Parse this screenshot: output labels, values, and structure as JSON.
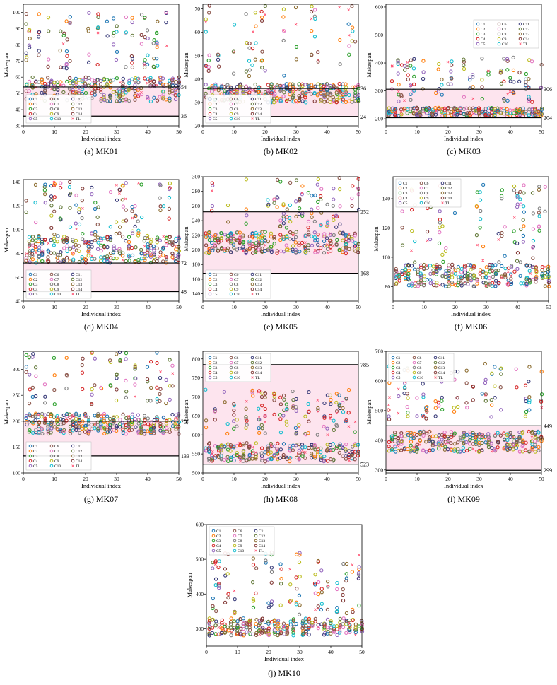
{
  "xlabel": "Individual index",
  "ylabel": "Makespan",
  "legend_labels": [
    "C1",
    "C2",
    "C3",
    "C4",
    "C5",
    "C6",
    "C7",
    "C8",
    "C9",
    "C10",
    "C11",
    "C12",
    "C13",
    "C14",
    "TL"
  ],
  "chart_data": [
    {
      "type": "scatter",
      "caption": "(a) MK01",
      "xlim": [
        0,
        50
      ],
      "ylim": [
        30,
        105
      ],
      "xticks": [
        0,
        10,
        20,
        30,
        40,
        50
      ],
      "yticks": [
        30,
        40,
        50,
        60,
        70,
        80,
        90,
        100
      ],
      "upper_line": 54,
      "lower_line": 36,
      "upper_label": "54",
      "lower_label": "36",
      "has_band": true,
      "legend": "bottom-left",
      "cluster_low": [
        45,
        60
      ],
      "cluster_high": [
        65,
        100
      ]
    },
    {
      "type": "scatter",
      "caption": "(b) MK02",
      "xlim": [
        0,
        50
      ],
      "ylim": [
        20,
        72
      ],
      "xticks": [
        0,
        10,
        20,
        30,
        40,
        50
      ],
      "yticks": [
        20,
        30,
        40,
        50,
        60,
        70
      ],
      "upper_line": 36,
      "lower_line": 24,
      "upper_label": "36",
      "lower_label": "24",
      "has_band": true,
      "legend": "bottom-left",
      "cluster_low": [
        30,
        38
      ],
      "cluster_high": [
        40,
        72
      ]
    },
    {
      "type": "scatter",
      "caption": "(c) MK03",
      "xlim": [
        0,
        50
      ],
      "ylim": [
        175,
        610
      ],
      "xticks": [
        0,
        10,
        20,
        30,
        40,
        50
      ],
      "yticks": [
        200,
        300,
        400,
        500,
        600
      ],
      "upper_line": 306,
      "lower_line": 204,
      "upper_label": "306",
      "lower_label": "204",
      "has_band": true,
      "legend": "top-right",
      "cluster_low": [
        210,
        240
      ],
      "cluster_high": [
        260,
        420
      ]
    },
    {
      "type": "scatter",
      "caption": "(d) MK04",
      "xlim": [
        0,
        50
      ],
      "ylim": [
        40,
        142
      ],
      "xticks": [
        0,
        10,
        20,
        30,
        40,
        50
      ],
      "yticks": [
        40,
        60,
        80,
        100,
        120,
        140
      ],
      "upper_line": 72,
      "lower_line": 48,
      "upper_label": "72",
      "lower_label": "48",
      "has_band": true,
      "legend": "bottom-left",
      "cluster_low": [
        72,
        95
      ],
      "cluster_high": [
        95,
        140
      ]
    },
    {
      "type": "scatter",
      "caption": "(e) MK05",
      "xlim": [
        0,
        50
      ],
      "ylim": [
        130,
        300
      ],
      "xticks": [
        0,
        10,
        20,
        30,
        40,
        50
      ],
      "yticks": [
        140,
        160,
        180,
        200,
        220,
        240,
        260,
        280,
        300
      ],
      "upper_line": 252,
      "lower_line": 168,
      "upper_label": "252",
      "lower_label": "168",
      "has_band": true,
      "legend": "bottom-left",
      "cluster_low": [
        195,
        225
      ],
      "cluster_high": [
        230,
        300
      ]
    },
    {
      "type": "scatter",
      "caption": "(f) MK06",
      "xlim": [
        0,
        50
      ],
      "ylim": [
        70,
        155
      ],
      "xticks": [
        0,
        10,
        20,
        30,
        40,
        50
      ],
      "yticks": [
        80,
        100,
        120,
        140
      ],
      "upper_line": null,
      "lower_line": null,
      "upper_label": "",
      "lower_label": "",
      "has_band": false,
      "legend": "top-left",
      "cluster_low": [
        80,
        95
      ],
      "cluster_high": [
        95,
        150
      ]
    },
    {
      "type": "scatter",
      "caption": "(g) MK07",
      "xlim": [
        0,
        50
      ],
      "ylim": [
        100,
        335
      ],
      "xticks": [
        0,
        10,
        20,
        30,
        40,
        50
      ],
      "yticks": [
        100,
        150,
        200,
        250,
        300
      ],
      "upper_line": 200,
      "lower_line": 133,
      "upper_label": "200",
      "lower_label": "133",
      "has_band": true,
      "legend": "bottom-left",
      "cluster_low": [
        175,
        215
      ],
      "cluster_high": [
        230,
        335
      ]
    },
    {
      "type": "scatter",
      "caption": "(h) MK08",
      "xlim": [
        0,
        50
      ],
      "ylim": [
        500,
        820
      ],
      "xticks": [
        0,
        10,
        20,
        30,
        40,
        50
      ],
      "yticks": [
        500,
        550,
        600,
        650,
        700,
        750,
        800
      ],
      "upper_line": 785,
      "lower_line": 523,
      "upper_label": "785",
      "lower_label": "523",
      "has_band": true,
      "legend": "top-left",
      "cluster_low": [
        530,
        580
      ],
      "cluster_high": [
        600,
        720
      ]
    },
    {
      "type": "scatter",
      "caption": "(i) MK09",
      "xlim": [
        0,
        50
      ],
      "ylim": [
        290,
        700
      ],
      "xticks": [
        0,
        10,
        20,
        30,
        40,
        50
      ],
      "yticks": [
        300,
        400,
        500,
        600,
        700
      ],
      "upper_line": 449,
      "lower_line": 299,
      "upper_label": "449",
      "lower_label": "299",
      "has_band": true,
      "legend": "top-left",
      "cluster_low": [
        360,
        430
      ],
      "cluster_high": [
        470,
        660
      ]
    },
    {
      "type": "scatter",
      "caption": "(j) MK10",
      "xlim": [
        0,
        50
      ],
      "ylim": [
        250,
        600
      ],
      "xticks": [
        0,
        10,
        20,
        30,
        40,
        50
      ],
      "yticks": [
        300,
        400,
        500,
        600
      ],
      "upper_line": null,
      "lower_line": null,
      "upper_label": "",
      "lower_label": "",
      "has_band": false,
      "legend": "top-left",
      "cluster_low": [
        280,
        330
      ],
      "cluster_high": [
        340,
        520
      ]
    }
  ],
  "series_colors": [
    "#1f77b4",
    "#ff7f0e",
    "#2ca02c",
    "#d62728",
    "#9467bd",
    "#8c564b",
    "#e377c2",
    "#7f7f7f",
    "#bcbd22",
    "#17becf",
    "#393b79",
    "#637939",
    "#8c6d31",
    "#843c39",
    "#ff4d6d"
  ],
  "band_color": "#fde4ee"
}
